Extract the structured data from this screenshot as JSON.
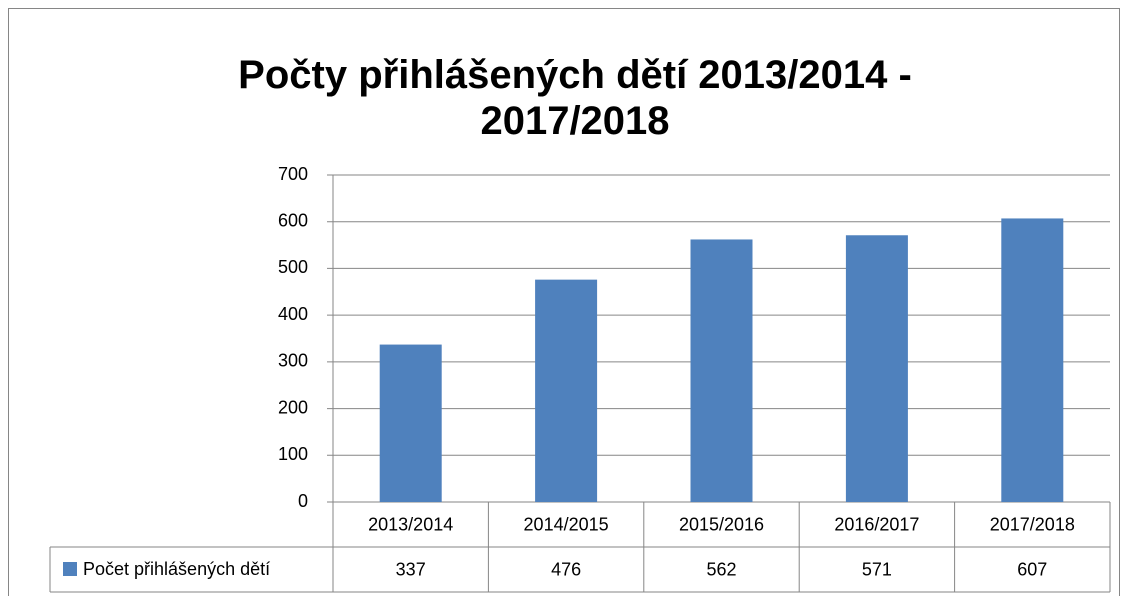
{
  "chart_data": {
    "type": "bar",
    "title": "Počty přihlášených dětí 2013/2014 - 2017/2018",
    "categories": [
      "2013/2014",
      "2014/2015",
      "2015/2016",
      "2016/2017",
      "2017/2018"
    ],
    "series": [
      {
        "name": "Počet přihlášených dětí",
        "color": "#4f81bd",
        "values": [
          337,
          476,
          562,
          571,
          607
        ]
      }
    ],
    "ylim": [
      0,
      700
    ],
    "yticks": [
      0,
      100,
      200,
      300,
      400,
      500,
      600,
      700
    ],
    "grid": true,
    "legend": "bottom-left"
  }
}
